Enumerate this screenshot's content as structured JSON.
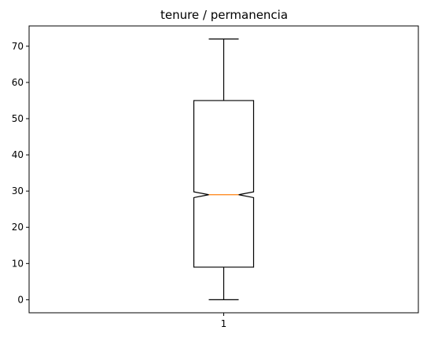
{
  "chart_data": {
    "type": "boxplot",
    "title": "tenure / permanencia",
    "xlabel": "",
    "ylabel": "",
    "categories": [
      "1"
    ],
    "ylim": [
      -3.6,
      75.6
    ],
    "yticks": [
      0,
      10,
      20,
      30,
      40,
      50,
      60,
      70
    ],
    "notched": true,
    "grid": false,
    "boxes": [
      {
        "category": "1",
        "whisker_low": 0,
        "q1": 9,
        "median": 29,
        "q3": 55,
        "whisker_high": 72,
        "notch_low": 28.2,
        "notch_high": 29.8
      }
    ],
    "colors": {
      "box": "#000000",
      "median": "#ff7f0e"
    }
  }
}
